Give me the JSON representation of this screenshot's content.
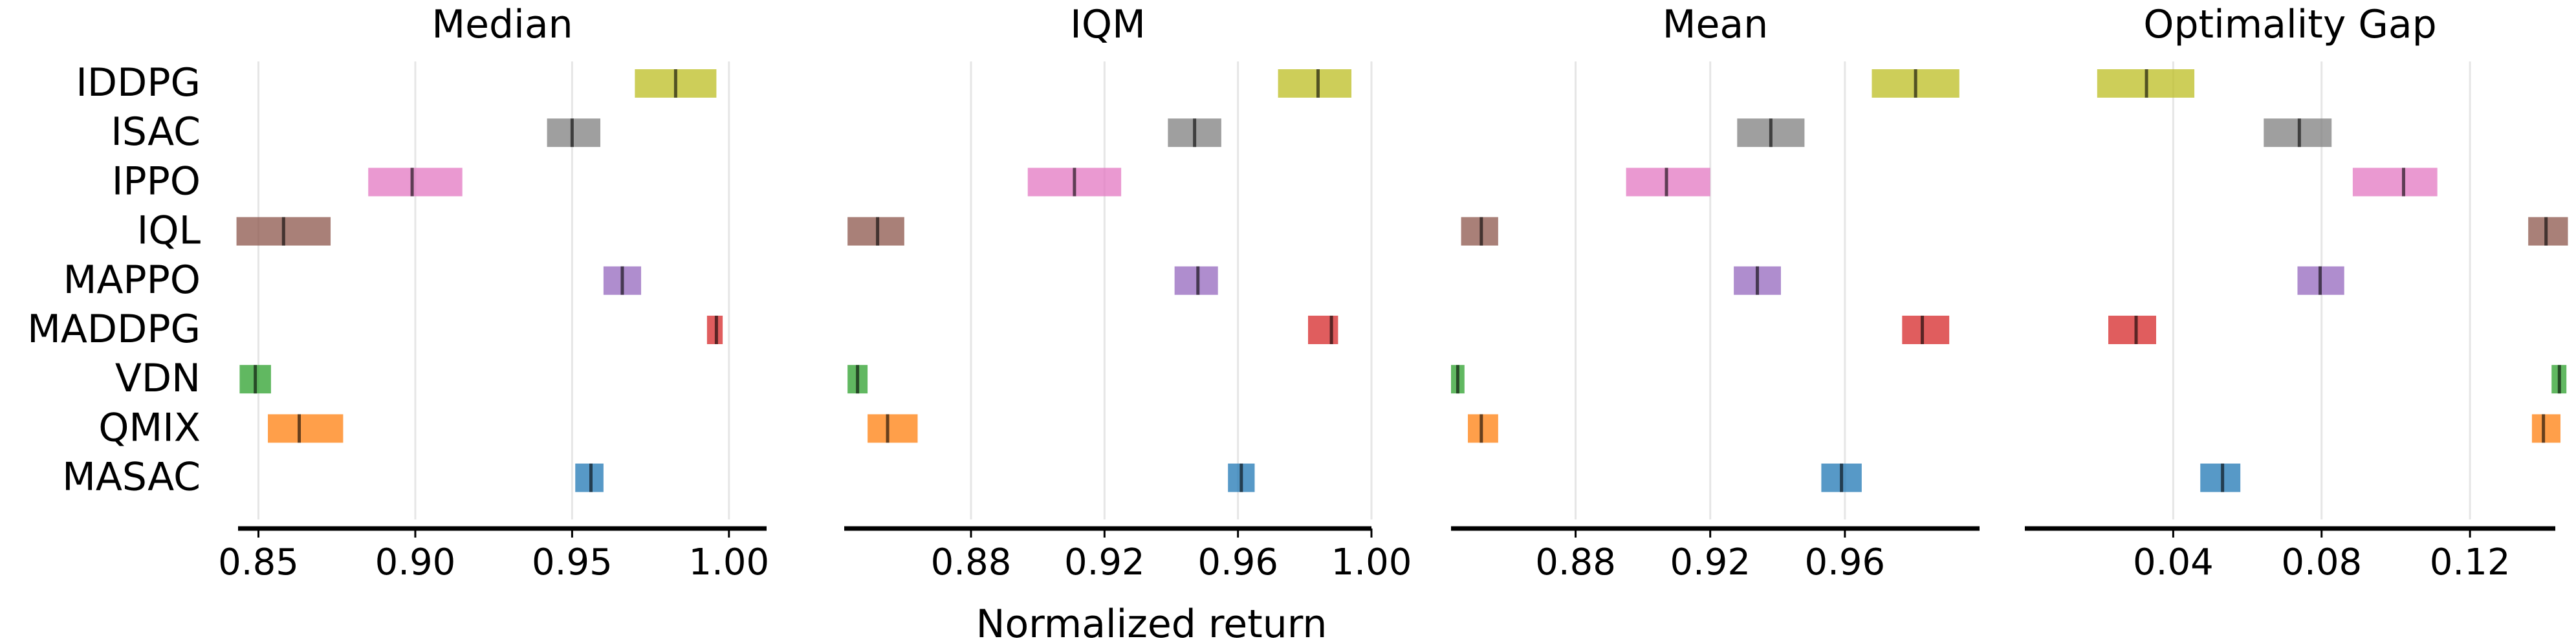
{
  "chart_data": {
    "type": "interval",
    "xlabel": "Normalized return",
    "algorithms": [
      "IDDPG",
      "ISAC",
      "IPPO",
      "IQL",
      "MAPPO",
      "MADDPG",
      "VDN",
      "QMIX",
      "MASAC"
    ],
    "colors": {
      "IDDPG": "#bcbd22",
      "ISAC": "#7f7f7f",
      "IPPO": "#e377c2",
      "IQL": "#8c564b",
      "MAPPO": "#9467bd",
      "MADDPG": "#d62728",
      "VDN": "#2ca02c",
      "QMIX": "#ff7f0e",
      "MASAC": "#1f77b4"
    },
    "panels": [
      {
        "title": "Median",
        "xlim": [
          0.8435,
          1.012
        ],
        "ticks": [
          0.85,
          0.9,
          0.95,
          1.0
        ],
        "tick_labels": [
          "0.85",
          "0.90",
          "0.95",
          "1.00"
        ],
        "intervals": [
          {
            "name": "IDDPG",
            "low": 0.97,
            "high": 0.996,
            "point": 0.983
          },
          {
            "name": "ISAC",
            "low": 0.942,
            "high": 0.959,
            "point": 0.95
          },
          {
            "name": "IPPO",
            "low": 0.885,
            "high": 0.915,
            "point": 0.899
          },
          {
            "name": "IQL",
            "low": 0.843,
            "high": 0.873,
            "point": 0.858
          },
          {
            "name": "MAPPO",
            "low": 0.96,
            "high": 0.972,
            "point": 0.966
          },
          {
            "name": "MADDPG",
            "low": 0.993,
            "high": 0.998,
            "point": 0.996
          },
          {
            "name": "VDN",
            "low": 0.844,
            "high": 0.854,
            "point": 0.849
          },
          {
            "name": "QMIX",
            "low": 0.853,
            "high": 0.877,
            "point": 0.863
          },
          {
            "name": "MASAC",
            "low": 0.951,
            "high": 0.96,
            "point": 0.956
          }
        ]
      },
      {
        "title": "IQM",
        "xlim": [
          0.842,
          1.0
        ],
        "ticks": [
          0.88,
          0.92,
          0.96,
          1.0
        ],
        "tick_labels": [
          "0.88",
          "0.92",
          "0.96",
          "1.00"
        ],
        "intervals": [
          {
            "name": "IDDPG",
            "low": 0.972,
            "high": 0.994,
            "point": 0.984
          },
          {
            "name": "ISAC",
            "low": 0.939,
            "high": 0.955,
            "point": 0.947
          },
          {
            "name": "IPPO",
            "low": 0.897,
            "high": 0.925,
            "point": 0.911
          },
          {
            "name": "IQL",
            "low": 0.843,
            "high": 0.86,
            "point": 0.852
          },
          {
            "name": "MAPPO",
            "low": 0.941,
            "high": 0.954,
            "point": 0.948
          },
          {
            "name": "MADDPG",
            "low": 0.981,
            "high": 0.99,
            "point": 0.988
          },
          {
            "name": "VDN",
            "low": 0.843,
            "high": 0.849,
            "point": 0.846
          },
          {
            "name": "QMIX",
            "low": 0.849,
            "high": 0.864,
            "point": 0.855
          },
          {
            "name": "MASAC",
            "low": 0.957,
            "high": 0.965,
            "point": 0.961
          }
        ]
      },
      {
        "title": "Mean",
        "xlim": [
          0.843,
          1.0
        ],
        "ticks": [
          0.88,
          0.92,
          0.96
        ],
        "tick_labels": [
          "0.88",
          "0.92",
          "0.96"
        ],
        "intervals": [
          {
            "name": "IDDPG",
            "low": 0.968,
            "high": 0.994,
            "point": 0.981
          },
          {
            "name": "ISAC",
            "low": 0.928,
            "high": 0.948,
            "point": 0.938
          },
          {
            "name": "IPPO",
            "low": 0.895,
            "high": 0.92,
            "point": 0.907
          },
          {
            "name": "IQL",
            "low": 0.846,
            "high": 0.857,
            "point": 0.852
          },
          {
            "name": "MAPPO",
            "low": 0.927,
            "high": 0.941,
            "point": 0.934
          },
          {
            "name": "MADDPG",
            "low": 0.977,
            "high": 0.991,
            "point": 0.983
          },
          {
            "name": "VDN",
            "low": 0.843,
            "high": 0.847,
            "point": 0.845
          },
          {
            "name": "QMIX",
            "low": 0.848,
            "high": 0.857,
            "point": 0.852
          },
          {
            "name": "MASAC",
            "low": 0.953,
            "high": 0.965,
            "point": 0.959
          }
        ]
      },
      {
        "title": "Optimality Gap",
        "xlim": [
          0.0,
          0.143
        ],
        "ticks": [
          0.04,
          0.08,
          0.12
        ],
        "tick_labels": [
          "0.04",
          "0.08",
          "0.12"
        ],
        "intervals": [
          {
            "name": "IDDPG",
            "low": 0.0195,
            "high": 0.0457,
            "point": 0.0328
          },
          {
            "name": "ISAC",
            "low": 0.0644,
            "high": 0.0827,
            "point": 0.074
          },
          {
            "name": "IPPO",
            "low": 0.0884,
            "high": 0.1112,
            "point": 0.1021
          },
          {
            "name": "IQL",
            "low": 0.1357,
            "high": 0.1464,
            "point": 0.1405
          },
          {
            "name": "MAPPO",
            "low": 0.0735,
            "high": 0.0861,
            "point": 0.0796
          },
          {
            "name": "MADDPG",
            "low": 0.0225,
            "high": 0.0354,
            "point": 0.03
          },
          {
            "name": "VDN",
            "low": 0.142,
            "high": 0.146,
            "point": 0.1441
          },
          {
            "name": "QMIX",
            "low": 0.1367,
            "high": 0.1444,
            "point": 0.1398
          },
          {
            "name": "MASAC",
            "low": 0.0473,
            "high": 0.0581,
            "point": 0.0533
          }
        ]
      }
    ]
  }
}
